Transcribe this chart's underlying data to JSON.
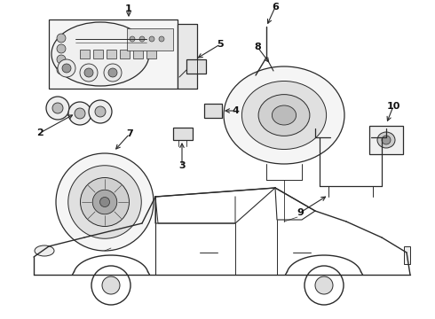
{
  "background_color": "#ffffff",
  "line_color": "#2a2a2a",
  "label_color": "#111111",
  "fig_width": 4.9,
  "fig_height": 3.6,
  "dpi": 100,
  "label_fontsize": 8,
  "label_fontweight": "bold"
}
